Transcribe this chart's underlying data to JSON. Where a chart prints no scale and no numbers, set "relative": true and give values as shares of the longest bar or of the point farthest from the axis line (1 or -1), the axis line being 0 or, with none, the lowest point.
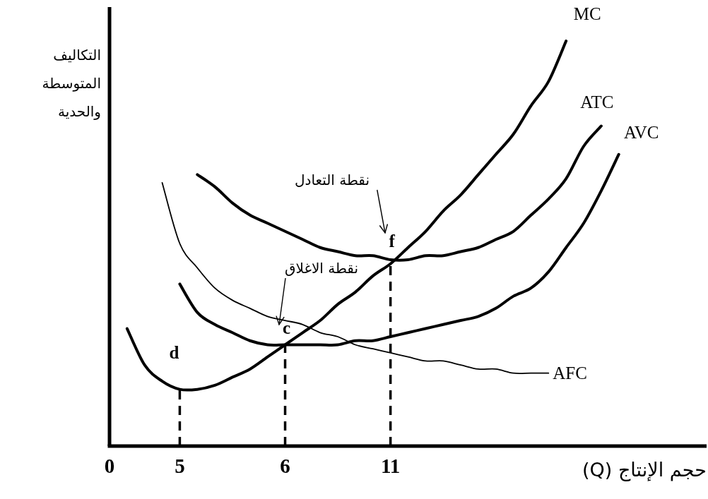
{
  "chart_data": {
    "type": "line",
    "relative": true,
    "xlabel": "حجم الإنتاج (Q)",
    "ylabel": "التكاليف المتوسطة والحدية",
    "marker": "none",
    "line_style": "solid",
    "categories": [
      "0",
      null,
      null,
      null,
      "5",
      null,
      null,
      null,
      null,
      null,
      "6",
      null,
      null,
      null,
      null,
      null,
      "11",
      null,
      null,
      null,
      null,
      null,
      null,
      null,
      null,
      null,
      null,
      null,
      null,
      null,
      null,
      null,
      null,
      null,
      null
    ],
    "series": [
      {
        "name": "MC",
        "color": "#000000",
        "values": [
          null,
          0.29,
          0.2,
          0.16,
          0.14,
          0.14,
          0.15,
          0.17,
          0.19,
          0.22,
          0.25,
          0.28,
          0.31,
          0.35,
          0.38,
          0.42,
          0.45,
          0.49,
          0.53,
          0.58,
          0.62,
          0.67,
          0.72,
          0.77,
          0.84,
          0.9,
          1.0,
          null,
          null,
          null,
          null,
          null,
          null,
          null,
          null
        ]
      },
      {
        "name": "ATC",
        "color": "#000000",
        "values": [
          null,
          null,
          null,
          null,
          null,
          0.67,
          0.64,
          0.6,
          0.57,
          0.55,
          0.53,
          0.51,
          0.49,
          0.48,
          0.47,
          0.47,
          0.46,
          0.46,
          0.47,
          0.47,
          0.48,
          0.49,
          0.51,
          0.53,
          0.57,
          0.61,
          0.66,
          0.74,
          0.79,
          null,
          null,
          null,
          null,
          null,
          null
        ]
      },
      {
        "name": "AVC",
        "color": "#000000",
        "values": [
          null,
          null,
          null,
          null,
          0.4,
          0.33,
          0.3,
          0.28,
          0.26,
          0.25,
          0.25,
          0.25,
          0.25,
          0.25,
          0.26,
          0.26,
          0.27,
          0.28,
          0.29,
          0.3,
          0.31,
          0.32,
          0.34,
          0.37,
          0.39,
          0.43,
          0.49,
          0.55,
          0.63,
          0.72,
          null,
          null,
          null,
          null,
          null
        ]
      },
      {
        "name": "AFC",
        "color": "#000000",
        "values": [
          null,
          null,
          null,
          0.65,
          0.5,
          0.44,
          0.39,
          0.36,
          0.34,
          0.32,
          0.31,
          0.3,
          0.28,
          0.27,
          0.25,
          0.24,
          0.23,
          0.22,
          0.21,
          0.21,
          0.2,
          0.19,
          0.19,
          0.18,
          0.18,
          0.18,
          null,
          null,
          null,
          null,
          null,
          null,
          null,
          null,
          null
        ]
      },
      {
        "color": "#000000",
        "line_style": "dashed",
        "x": [
          "5",
          "5"
        ],
        "values": [
          0,
          0.14
        ]
      },
      {
        "color": "#000000",
        "line_style": "dashed",
        "x": [
          "6",
          "6"
        ],
        "values": [
          0,
          0.25
        ]
      },
      {
        "color": "#000000",
        "line_style": "dashed",
        "x": [
          "11",
          "11"
        ],
        "values": [
          0,
          0.46
        ]
      }
    ],
    "annotations": [
      {
        "text": "d",
        "x": "5",
        "y": 0.14
      },
      {
        "text": "c",
        "x": "6",
        "y": 0.25
      },
      {
        "text": "f",
        "x": "11",
        "y": 0.46
      },
      "نقطة الاغلاق",
      "نقطة التعادل"
    ]
  }
}
